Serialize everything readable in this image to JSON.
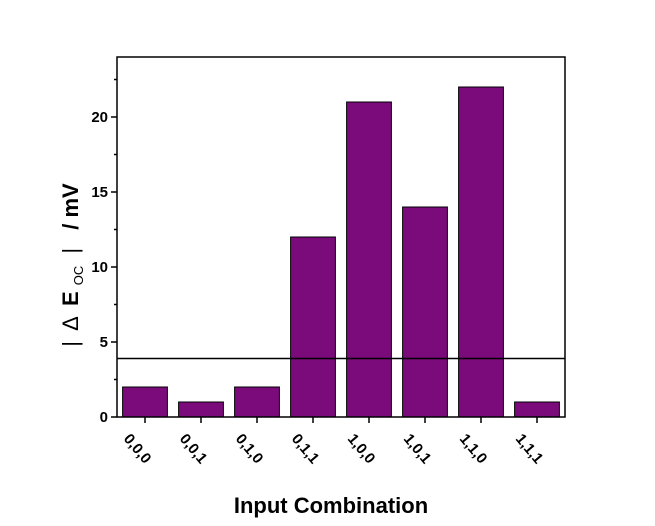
{
  "chart_data": {
    "type": "bar",
    "categories": [
      "0,0,0",
      "0,0,1",
      "0,1,0",
      "0,1,1",
      "1,0,0",
      "1,0,1",
      "1,1,0",
      "1,1,1"
    ],
    "values": [
      2,
      1,
      2,
      12,
      21,
      14,
      22,
      1
    ],
    "xlabel": "Input Combination",
    "ylabel": {
      "open_bar": "|",
      "delta": "Δ",
      "e": "E",
      "subscript": "OC",
      "close_bar": "|",
      "unit": "/ mV"
    },
    "ylim": [
      0,
      24
    ],
    "yticks": [
      0,
      5,
      10,
      15,
      20
    ],
    "threshold_line": 3.9,
    "bar_color": "#7b0b7b",
    "grid": false,
    "legend": "none"
  }
}
